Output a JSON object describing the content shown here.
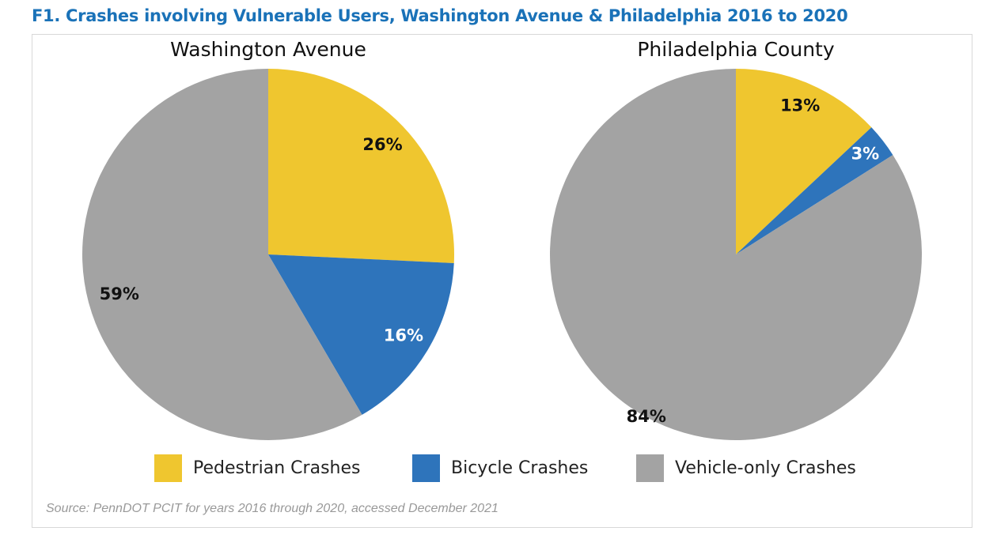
{
  "title": "F1. Crashes involving Vulnerable Users, Washington Avenue & Philadelphia 2016 to 2020",
  "source": "Source: PennDOT PCIT for years 2016 through 2020, accessed December 2021",
  "chart_data": [
    {
      "type": "pie",
      "title": "Washington Avenue",
      "categories": [
        "Pedestrian Crashes",
        "Bicycle Crashes",
        "Vehicle-only Crashes"
      ],
      "values": [
        26,
        16,
        59
      ],
      "labels": [
        "26%",
        "16%",
        "59%"
      ]
    },
    {
      "type": "pie",
      "title": "Philadelphia County",
      "categories": [
        "Pedestrian Crashes",
        "Bicycle Crashes",
        "Vehicle-only Crashes"
      ],
      "values": [
        13,
        3,
        84
      ],
      "labels": [
        "13%",
        "3%",
        "84%"
      ]
    }
  ],
  "legend": [
    {
      "label": "Pedestrian Crashes",
      "color": "#efc62f"
    },
    {
      "label": "Bicycle Crashes",
      "color": "#2e74bb"
    },
    {
      "label": "Vehicle-only Crashes",
      "color": "#a3a3a3"
    }
  ],
  "label_colors": [
    "#111111",
    "#ffffff",
    "#111111"
  ]
}
